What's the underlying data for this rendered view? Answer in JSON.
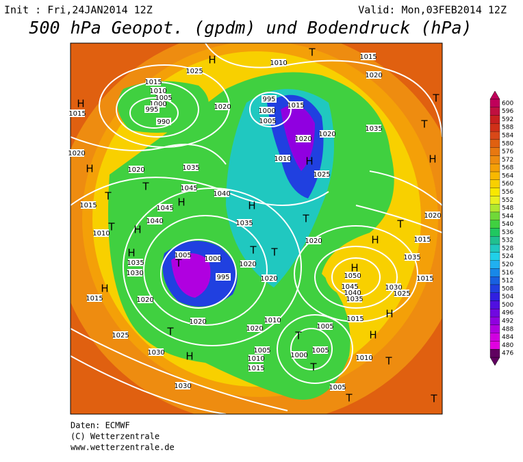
{
  "header": {
    "init": "Init : Fri,24JAN2014 12Z",
    "valid": "Valid: Mon,03FEB2014 12Z",
    "title": "500 hPa Geopot. (gpdm) und Bodendruck (hPa)"
  },
  "colorbar": {
    "levels": [
      600,
      596,
      592,
      588,
      584,
      580,
      576,
      572,
      568,
      564,
      560,
      556,
      552,
      548,
      544,
      540,
      536,
      532,
      528,
      524,
      520,
      516,
      512,
      508,
      504,
      500,
      496,
      492,
      488,
      484,
      480,
      476
    ],
    "colors": [
      "#c0005a",
      "#c01040",
      "#c82020",
      "#d03018",
      "#d84818",
      "#e06010",
      "#e87810",
      "#ee8c10",
      "#f4a008",
      "#f8b800",
      "#f8d000",
      "#f8e800",
      "#e8f020",
      "#b0e830",
      "#70d838",
      "#40d040",
      "#20c860",
      "#20c090",
      "#20c8c0",
      "#20d0e8",
      "#20b0f0",
      "#1888e8",
      "#1860e0",
      "#2040e0",
      "#3020e0",
      "#5010e0",
      "#7008e0",
      "#9000e0",
      "#b000e0",
      "#d000e0",
      "#e000e0",
      "#600060"
    ]
  },
  "map": {
    "labels": [
      "H",
      "T",
      "1015",
      "1010",
      "1025",
      "1020",
      "1015",
      "1010",
      "1005",
      "1000",
      "995",
      "990",
      "H",
      "1015",
      "1020",
      "995",
      "1000",
      "1005",
      "1015",
      "1035",
      "T",
      "1020",
      "1020",
      "H",
      "1010",
      "1025",
      "H",
      "1020",
      "1035",
      "1045",
      "1040",
      "1015",
      "1045",
      "1040",
      "T",
      "T",
      "H",
      "H",
      "1035",
      "1020",
      "T",
      "1010",
      "H",
      "H",
      "1035",
      "1030",
      "T",
      "1005",
      "1000",
      "995",
      "T",
      "T",
      "1020",
      "1020",
      "H",
      "1050",
      "1045",
      "1040",
      "1035",
      "1030",
      "1025",
      "1015",
      "1035",
      "1015",
      "H",
      "T",
      "T",
      "H",
      "1020",
      "1015",
      "1020",
      "1020",
      "1025",
      "1030",
      "H",
      "T",
      "1020",
      "1010",
      "1005",
      "1010",
      "1015",
      "1005",
      "1000",
      "1005",
      "T",
      "T",
      "H",
      "T",
      "1010",
      "H",
      "1015",
      "1030",
      "1005",
      "T",
      "T",
      "1020",
      "H",
      "T"
    ]
  },
  "footer": {
    "source": "Daten: ECMWF",
    "copyright": "(C) Wetterzentrale",
    "url": "www.wetterzentrale.de"
  }
}
